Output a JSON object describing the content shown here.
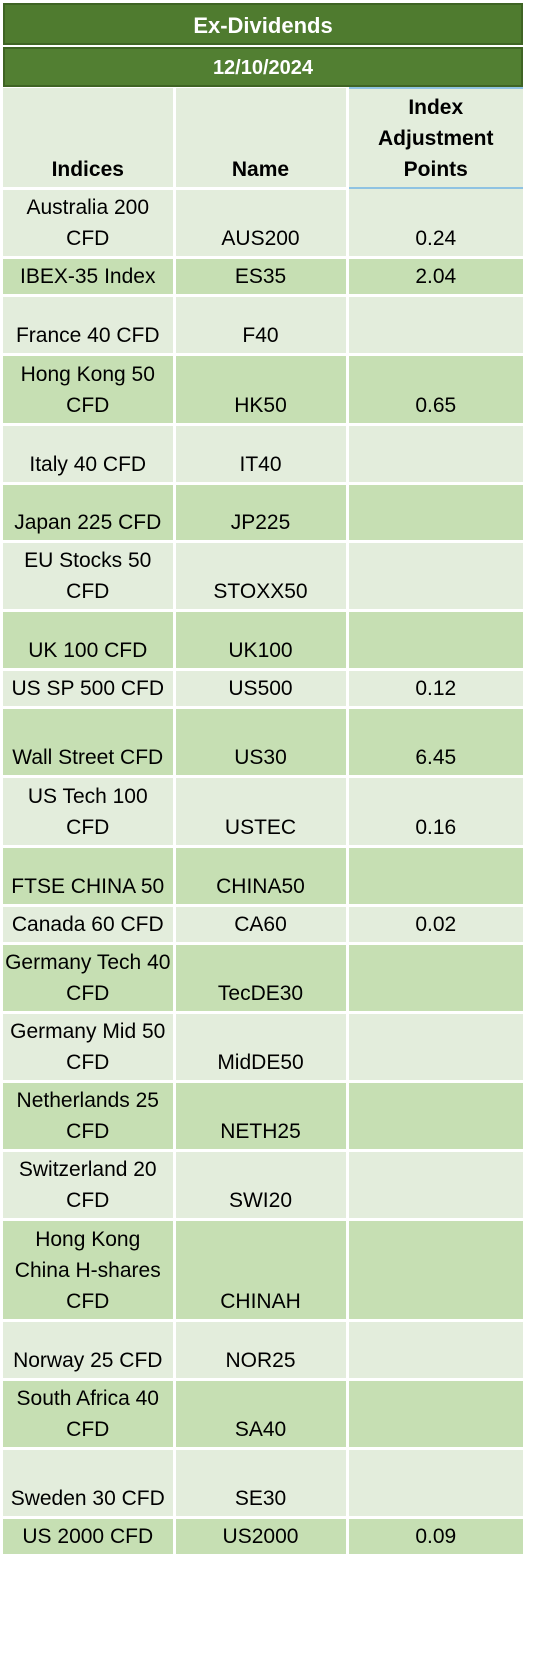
{
  "title": "Ex-Dividends",
  "date": "12/10/2024",
  "columns": {
    "indices": "Indices",
    "name": "Name",
    "adjustment": "Index Adjustment Points"
  },
  "rows": [
    {
      "index": "Australia 200 CFD",
      "name": "AUS200",
      "points": "0.24"
    },
    {
      "index": "IBEX-35 Index",
      "name": "ES35",
      "points": "2.04"
    },
    {
      "index": "France 40 CFD",
      "name": "F40",
      "points": ""
    },
    {
      "index": "Hong Kong 50 CFD",
      "name": "HK50",
      "points": "0.65"
    },
    {
      "index": "Italy 40 CFD",
      "name": "IT40",
      "points": ""
    },
    {
      "index": "Japan 225 CFD",
      "name": "JP225",
      "points": ""
    },
    {
      "index": "EU Stocks 50 CFD",
      "name": "STOXX50",
      "points": ""
    },
    {
      "index": "UK 100 CFD",
      "name": "UK100",
      "points": ""
    },
    {
      "index": "US SP 500 CFD",
      "name": "US500",
      "points": "0.12"
    },
    {
      "index": "Wall Street CFD",
      "name": "US30",
      "points": "6.45"
    },
    {
      "index": "US Tech 100 CFD",
      "name": "USTEC",
      "points": "0.16"
    },
    {
      "index": "FTSE CHINA 50",
      "name": "CHINA50",
      "points": ""
    },
    {
      "index": "Canada 60 CFD",
      "name": "CA60",
      "points": "0.02"
    },
    {
      "index": "Germany Tech 40 CFD",
      "name": "TecDE30",
      "points": ""
    },
    {
      "index": "Germany Mid 50 CFD",
      "name": "MidDE50",
      "points": ""
    },
    {
      "index": "Netherlands 25 CFD",
      "name": "NETH25",
      "points": ""
    },
    {
      "index": "Switzerland 20 CFD",
      "name": "SWI20",
      "points": ""
    },
    {
      "index": "Hong Kong China H-shares CFD",
      "name": "CHINAH",
      "points": ""
    },
    {
      "index": "Norway 25 CFD",
      "name": "NOR25",
      "points": ""
    },
    {
      "index": "South Africa 40 CFD",
      "name": "SA40",
      "points": ""
    },
    {
      "index": "Sweden 30 CFD",
      "name": "SE30",
      "points": ""
    },
    {
      "index": "US 2000 CFD",
      "name": "US2000",
      "points": "0.09"
    }
  ]
}
